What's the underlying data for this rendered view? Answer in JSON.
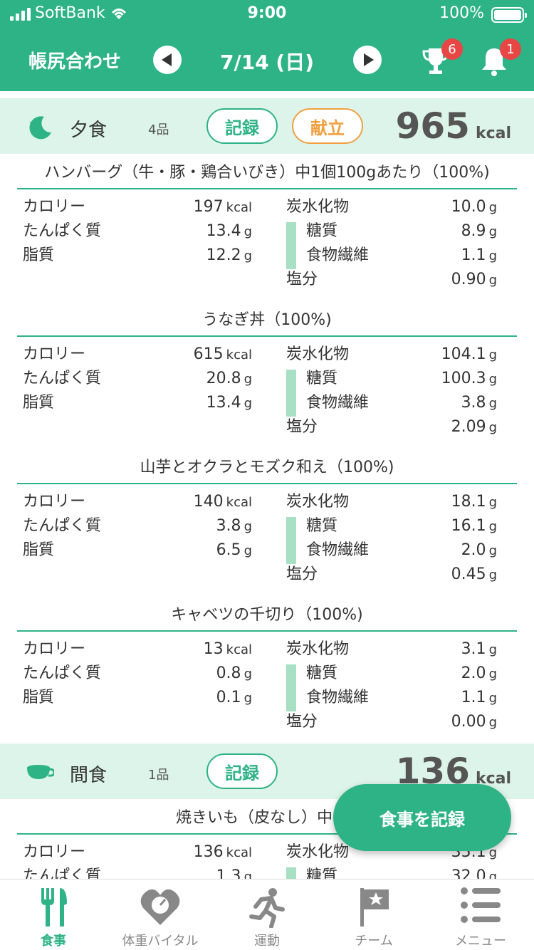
{
  "status": {
    "carrier": "SoftBank",
    "time": "9:00",
    "battery": "100%"
  },
  "nav": {
    "title": "帳尻合わせ",
    "date": "7/14 (日)",
    "trophy_badge": "6",
    "bell_badge": "1"
  },
  "dinner": {
    "name": "夕食",
    "count": "4品",
    "record_label": "記録",
    "menu_label": "献立",
    "kcal": "965",
    "kcal_unit": "kcal",
    "foods": [
      {
        "name": "ハンバーグ（牛・豚・鶏合いびき）中1個100gあたり（100%)",
        "kcal": "197",
        "protein": "13.4",
        "fat": "12.2",
        "carbs": "10.0",
        "sugar": "8.9",
        "fiber": "1.1",
        "salt": "0.90"
      },
      {
        "name": "うなぎ丼（100%)",
        "kcal": "615",
        "protein": "20.8",
        "fat": "13.4",
        "carbs": "104.1",
        "sugar": "100.3",
        "fiber": "3.8",
        "salt": "2.09"
      },
      {
        "name": "山芋とオクラとモズク和え（100%)",
        "kcal": "140",
        "protein": "3.8",
        "fat": "6.5",
        "carbs": "18.1",
        "sugar": "16.1",
        "fiber": "2.0",
        "salt": "0.45"
      },
      {
        "name": "キャベツの千切り（100%)",
        "kcal": "13",
        "protein": "0.8",
        "fat": "0.1",
        "carbs": "3.1",
        "sugar": "2.0",
        "fiber": "1.1",
        "salt": "0.00"
      }
    ]
  },
  "snack": {
    "name": "間食",
    "count": "1品",
    "record_label": "記録",
    "kcal": "136",
    "kcal_unit": "kcal",
    "foods": [
      {
        "name": "焼きいも（皮なし）中1本",
        "kcal": "136",
        "protein": "1.3",
        "carbs": "35.1",
        "sugar": "32.0"
      }
    ]
  },
  "labels": {
    "calorie": "カロリー",
    "protein": "たんぱく質",
    "fat": "脂質",
    "carbs": "炭水化物",
    "sugar": "糖質",
    "fiber": "食物繊維",
    "salt": "塩分",
    "kcal": "kcal",
    "g": "g"
  },
  "fab_label": "食事を記録",
  "tabs": [
    {
      "label": "食事"
    },
    {
      "label": "体重バイタル"
    },
    {
      "label": "運動"
    },
    {
      "label": "チーム"
    },
    {
      "label": "メニュー"
    }
  ],
  "colors": {
    "primary": "#2eb386",
    "secondary": "#f0a040",
    "header_bg": "#ddf4ea",
    "badge": "#e84545"
  }
}
